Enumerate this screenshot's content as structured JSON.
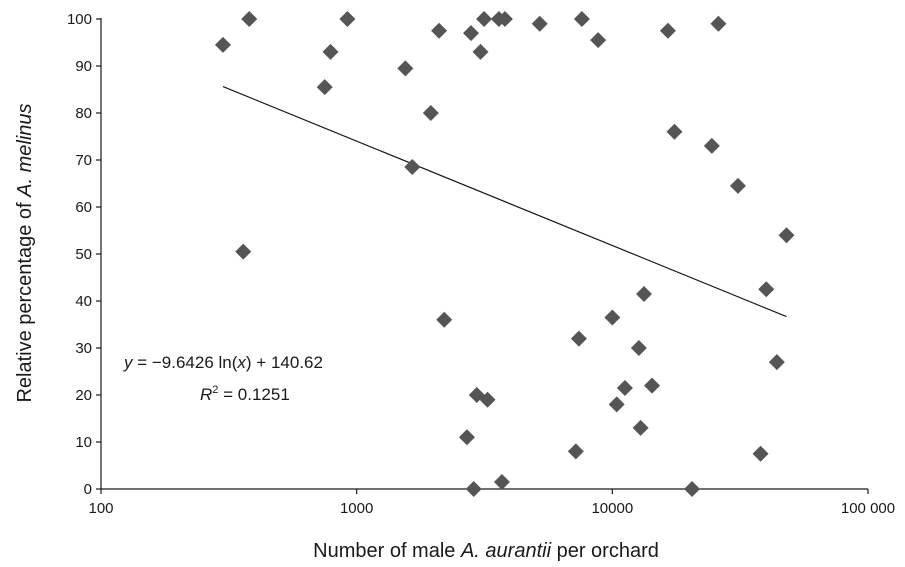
{
  "chart_data": {
    "type": "scatter",
    "xlabel_parts": [
      "Number of male ",
      "A. aurantii",
      " per orchard"
    ],
    "ylabel_parts": [
      "Relative percentage of ",
      "A. melinus"
    ],
    "x_scale": "log",
    "xlim": [
      100,
      100000
    ],
    "ylim": [
      0,
      100
    ],
    "x_ticks": [
      100,
      1000,
      10000,
      100000
    ],
    "x_tick_labels": [
      "100",
      "1000",
      "10000",
      "100 000"
    ],
    "y_ticks": [
      0,
      10,
      20,
      30,
      40,
      50,
      60,
      70,
      80,
      90,
      100
    ],
    "y_tick_labels": [
      "0",
      "10",
      "20",
      "30",
      "40",
      "50",
      "60",
      "70",
      "80",
      "90",
      "100"
    ],
    "grid": false,
    "marker": "diamond",
    "marker_color": "#555555",
    "line_color": "#1a1a1a",
    "points": [
      {
        "x": 300,
        "y": 94.5
      },
      {
        "x": 360,
        "y": 50.5
      },
      {
        "x": 380,
        "y": 100
      },
      {
        "x": 750,
        "y": 85.5
      },
      {
        "x": 790,
        "y": 93
      },
      {
        "x": 920,
        "y": 100
      },
      {
        "x": 1550,
        "y": 89.5
      },
      {
        "x": 1650,
        "y": 68.5
      },
      {
        "x": 1950,
        "y": 80
      },
      {
        "x": 2100,
        "y": 97.5
      },
      {
        "x": 2200,
        "y": 36
      },
      {
        "x": 2700,
        "y": 11
      },
      {
        "x": 2800,
        "y": 97
      },
      {
        "x": 2870,
        "y": 0
      },
      {
        "x": 2950,
        "y": 20
      },
      {
        "x": 3050,
        "y": 93
      },
      {
        "x": 3150,
        "y": 100
      },
      {
        "x": 3250,
        "y": 19
      },
      {
        "x": 3600,
        "y": 100
      },
      {
        "x": 3700,
        "y": 1.5
      },
      {
        "x": 3800,
        "y": 100
      },
      {
        "x": 5200,
        "y": 99
      },
      {
        "x": 7200,
        "y": 8
      },
      {
        "x": 7400,
        "y": 32
      },
      {
        "x": 7600,
        "y": 100
      },
      {
        "x": 8800,
        "y": 95.5
      },
      {
        "x": 10000,
        "y": 36.5
      },
      {
        "x": 10400,
        "y": 18
      },
      {
        "x": 11200,
        "y": 21.5
      },
      {
        "x": 12700,
        "y": 30
      },
      {
        "x": 12900,
        "y": 13
      },
      {
        "x": 13300,
        "y": 41.5
      },
      {
        "x": 14300,
        "y": 22
      },
      {
        "x": 16500,
        "y": 97.5
      },
      {
        "x": 17500,
        "y": 76
      },
      {
        "x": 20500,
        "y": 0
      },
      {
        "x": 24500,
        "y": 73
      },
      {
        "x": 26000,
        "y": 99
      },
      {
        "x": 31000,
        "y": 64.5
      },
      {
        "x": 38000,
        "y": 7.5
      },
      {
        "x": 40000,
        "y": 42.5
      },
      {
        "x": 44000,
        "y": 27
      },
      {
        "x": 48000,
        "y": 54
      }
    ],
    "trendline": {
      "type": "logarithmic",
      "slope": -9.6426,
      "intercept": 140.62,
      "x_range": [
        300,
        48000
      ]
    },
    "annotations": {
      "equation_parts": [
        "y",
        " = −9.6426 ln(",
        "x",
        ") + 140.62"
      ],
      "r2_parts": [
        "R",
        "2",
        " = 0.1251"
      ]
    }
  }
}
